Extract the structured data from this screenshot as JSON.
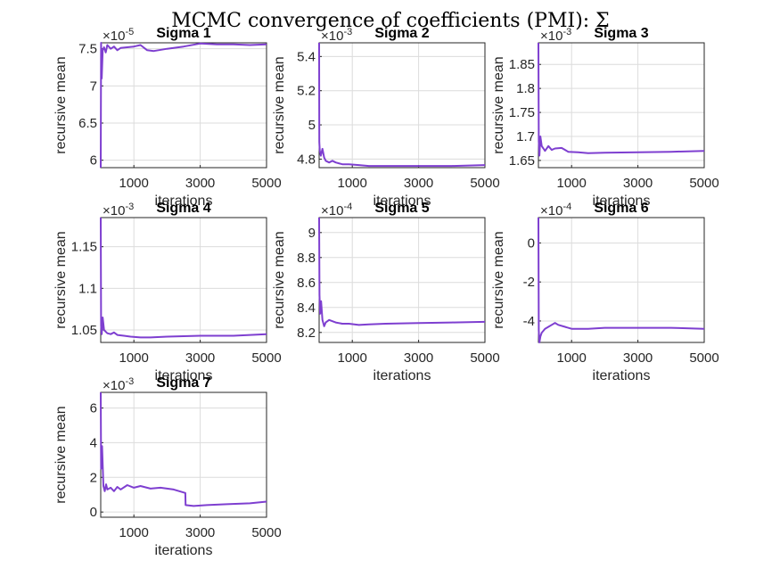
{
  "figure_title": "MCMC convergence of coefficients (PMI): Σ",
  "line_color": "#7e3fd0",
  "chart_data": [
    {
      "type": "line",
      "title": "Sigma 1",
      "xlabel": "iterations",
      "ylabel": "recursive mean",
      "xlim": [
        0,
        5000
      ],
      "xticks": [
        1000,
        3000,
        5000
      ],
      "ylim": [
        5.9,
        7.58
      ],
      "yticks": [
        6,
        6.5,
        7,
        7.5
      ],
      "ytick_labels": [
        "6",
        "6.5",
        "7",
        "7.5"
      ],
      "exponent_label": "×10",
      "exponent_power": "-5",
      "grid": true,
      "series": [
        {
          "x": [
            0,
            10,
            30,
            60,
            100,
            150,
            200,
            300,
            400,
            500,
            600,
            800,
            1000,
            1200,
            1400,
            1600,
            2000,
            2500,
            3000,
            3500,
            4000,
            4500,
            5000
          ],
          "y": [
            5.9,
            7.58,
            7.1,
            7.48,
            7.52,
            7.45,
            7.55,
            7.5,
            7.53,
            7.48,
            7.51,
            7.52,
            7.53,
            7.55,
            7.48,
            7.47,
            7.5,
            7.53,
            7.57,
            7.56,
            7.56,
            7.55,
            7.56
          ]
        }
      ]
    },
    {
      "type": "line",
      "title": "Sigma 2",
      "xlabel": "iterations",
      "ylabel": "recursive mean",
      "xlim": [
        0,
        5000
      ],
      "xticks": [
        1000,
        3000,
        5000
      ],
      "ylim": [
        4.75,
        5.48
      ],
      "yticks": [
        4.8,
        5,
        5.2,
        5.4
      ],
      "ytick_labels": [
        "4.8",
        "5",
        "5.2",
        "5.4"
      ],
      "exponent_label": "×10",
      "exponent_power": "-3",
      "grid": true,
      "series": [
        {
          "x": [
            0,
            5,
            20,
            50,
            100,
            150,
            200,
            300,
            400,
            500,
            700,
            900,
            1200,
            1500,
            2000,
            3000,
            4000,
            5000
          ],
          "y": [
            5.48,
            4.9,
            4.85,
            4.82,
            4.86,
            4.81,
            4.79,
            4.78,
            4.79,
            4.78,
            4.77,
            4.77,
            4.765,
            4.76,
            4.76,
            4.76,
            4.76,
            4.765
          ]
        }
      ]
    },
    {
      "type": "line",
      "title": "Sigma 3",
      "xlabel": "iterations",
      "ylabel": "recursive mean",
      "xlim": [
        0,
        5000
      ],
      "xticks": [
        1000,
        3000,
        5000
      ],
      "ylim": [
        1.635,
        1.895
      ],
      "yticks": [
        1.65,
        1.7,
        1.75,
        1.8,
        1.85
      ],
      "ytick_labels": [
        "1.65",
        "1.7",
        "1.75",
        "1.8",
        "1.85"
      ],
      "exponent_label": "×10",
      "exponent_power": "-3",
      "grid": true,
      "series": [
        {
          "x": [
            0,
            10,
            30,
            60,
            100,
            150,
            200,
            300,
            400,
            500,
            700,
            900,
            1200,
            1500,
            2000,
            3000,
            4000,
            5000
          ],
          "y": [
            1.895,
            1.69,
            1.66,
            1.7,
            1.68,
            1.675,
            1.67,
            1.68,
            1.672,
            1.675,
            1.676,
            1.668,
            1.667,
            1.665,
            1.666,
            1.667,
            1.668,
            1.67
          ]
        }
      ]
    },
    {
      "type": "line",
      "title": "Sigma 4",
      "xlabel": "iterations",
      "ylabel": "recursive mean",
      "xlim": [
        0,
        5000
      ],
      "xticks": [
        1000,
        3000,
        5000
      ],
      "ylim": [
        1.035,
        1.185
      ],
      "yticks": [
        1.05,
        1.1,
        1.15
      ],
      "ytick_labels": [
        "1.05",
        "1.1",
        "1.15"
      ],
      "exponent_label": "×10",
      "exponent_power": "-3",
      "grid": true,
      "series": [
        {
          "x": [
            0,
            10,
            30,
            60,
            100,
            150,
            200,
            300,
            400,
            500,
            700,
            900,
            1200,
            1500,
            2000,
            3000,
            4000,
            5000
          ],
          "y": [
            1.185,
            1.055,
            1.045,
            1.065,
            1.05,
            1.048,
            1.046,
            1.045,
            1.047,
            1.044,
            1.043,
            1.042,
            1.041,
            1.041,
            1.042,
            1.043,
            1.043,
            1.045
          ]
        }
      ]
    },
    {
      "type": "line",
      "title": "Sigma 5",
      "xlabel": "iterations",
      "ylabel": "recursive mean",
      "xlim": [
        0,
        5000
      ],
      "xticks": [
        1000,
        3000,
        5000
      ],
      "ylim": [
        8.12,
        9.12
      ],
      "yticks": [
        8.2,
        8.4,
        8.6,
        8.8,
        9
      ],
      "ytick_labels": [
        "8.2",
        "8.4",
        "8.6",
        "8.8",
        "9"
      ],
      "exponent_label": "×10",
      "exponent_power": "-4",
      "grid": true,
      "series": [
        {
          "x": [
            0,
            10,
            30,
            60,
            100,
            150,
            200,
            300,
            400,
            500,
            700,
            900,
            1200,
            1500,
            2000,
            3000,
            4000,
            5000
          ],
          "y": [
            9.12,
            8.5,
            8.35,
            8.45,
            8.3,
            8.25,
            8.28,
            8.3,
            8.29,
            8.28,
            8.27,
            8.27,
            8.26,
            8.265,
            8.27,
            8.275,
            8.28,
            8.285
          ]
        }
      ]
    },
    {
      "type": "line",
      "title": "Sigma 6",
      "xlabel": "iterations",
      "ylabel": "recursive mean",
      "xlim": [
        0,
        5000
      ],
      "xticks": [
        1000,
        3000,
        5000
      ],
      "ylim": [
        -5.1,
        1.3
      ],
      "yticks": [
        -4,
        -2,
        0
      ],
      "ytick_labels": [
        "-4",
        "-2",
        "0"
      ],
      "exponent_label": "×10",
      "exponent_power": "-4",
      "grid": true,
      "series": [
        {
          "x": [
            0,
            10,
            30,
            60,
            100,
            150,
            200,
            300,
            400,
            500,
            600,
            800,
            1000,
            1200,
            1500,
            2000,
            3000,
            4000,
            5000
          ],
          "y": [
            1.3,
            -4.5,
            -5.1,
            -4.8,
            -4.6,
            -4.5,
            -4.4,
            -4.3,
            -4.2,
            -4.1,
            -4.2,
            -4.3,
            -4.4,
            -4.4,
            -4.4,
            -4.35,
            -4.35,
            -4.35,
            -4.4
          ]
        }
      ]
    },
    {
      "type": "line",
      "title": "Sigma 7",
      "xlabel": "iterations",
      "ylabel": "recursive mean",
      "xlim": [
        0,
        5000
      ],
      "xticks": [
        1000,
        3000,
        5000
      ],
      "ylim": [
        -0.3,
        6.9
      ],
      "yticks": [
        0,
        2,
        4,
        6
      ],
      "ytick_labels": [
        "0",
        "2",
        "4",
        "6"
      ],
      "exponent_label": "×10",
      "exponent_power": "-3",
      "grid": true,
      "series": [
        {
          "x": [
            0,
            10,
            40,
            80,
            120,
            160,
            200,
            300,
            400,
            500,
            600,
            800,
            1000,
            1200,
            1500,
            1800,
            2200,
            2550,
            2560,
            2800,
            3200,
            3800,
            4500,
            5000
          ],
          "y": [
            6.9,
            2.5,
            3.8,
            1.5,
            1.2,
            1.6,
            1.3,
            1.4,
            1.2,
            1.45,
            1.3,
            1.55,
            1.4,
            1.5,
            1.35,
            1.4,
            1.3,
            1.1,
            0.4,
            0.35,
            0.4,
            0.45,
            0.5,
            0.6
          ]
        }
      ]
    }
  ]
}
